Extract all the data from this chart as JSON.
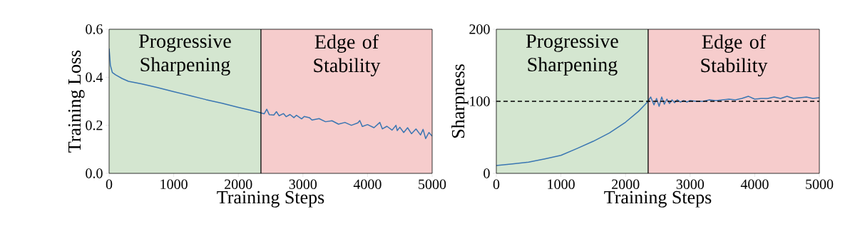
{
  "chart_data": [
    {
      "type": "line",
      "xlabel": "Training Steps",
      "ylabel": "Training Loss",
      "xlim": [
        0,
        5000
      ],
      "ylim": [
        0,
        0.6
      ],
      "xticks": [
        0,
        1000,
        2000,
        3000,
        4000,
        5000
      ],
      "yticks": [
        {
          "value": 0,
          "label": "0.0"
        },
        0.2,
        0.4,
        0.6
      ],
      "series": [
        {
          "color": "#3a76b2",
          "x": [
            0,
            20,
            50,
            100,
            200,
            300,
            500,
            750,
            1000,
            1250,
            1500,
            1750,
            2000,
            2200,
            2350,
            2400,
            2440,
            2480,
            2550,
            2590,
            2630,
            2700,
            2740,
            2800,
            2860,
            2900,
            2980,
            3020,
            3100,
            3140,
            3250,
            3350,
            3450,
            3550,
            3650,
            3750,
            3850,
            3880,
            3920,
            4000,
            4100,
            4190,
            4230,
            4300,
            4380,
            4440,
            4460,
            4500,
            4560,
            4620,
            4680,
            4750,
            4820,
            4860,
            4900,
            4950,
            5000
          ],
          "values": [
            0.52,
            0.45,
            0.42,
            0.41,
            0.395,
            0.383,
            0.373,
            0.357,
            0.34,
            0.324,
            0.307,
            0.292,
            0.275,
            0.262,
            0.252,
            0.248,
            0.267,
            0.244,
            0.243,
            0.257,
            0.24,
            0.249,
            0.236,
            0.245,
            0.232,
            0.242,
            0.227,
            0.237,
            0.232,
            0.222,
            0.228,
            0.215,
            0.219,
            0.205,
            0.212,
            0.2,
            0.21,
            0.22,
            0.195,
            0.203,
            0.19,
            0.212,
            0.185,
            0.196,
            0.18,
            0.2,
            0.178,
            0.192,
            0.17,
            0.19,
            0.165,
            0.185,
            0.16,
            0.183,
            0.145,
            0.17,
            0.155
          ]
        }
      ],
      "ref_lines": [
        {
          "axis": "x",
          "value": 2350,
          "color": "#000000",
          "line_style": "solid"
        }
      ],
      "bands": [
        {
          "axis": "x",
          "from": 0,
          "to": 2350,
          "label": "Progressive Sharpening",
          "color": "#d4e6d0"
        },
        {
          "axis": "x",
          "from": 2350,
          "to": 5000,
          "label": "Edge of Stability",
          "color": "#f6cccc"
        }
      ]
    },
    {
      "type": "line",
      "xlabel": "Training Steps",
      "ylabel": "Sharpness",
      "xlim": [
        0,
        5000
      ],
      "ylim": [
        0,
        200
      ],
      "xticks": [
        0,
        1000,
        2000,
        3000,
        4000,
        5000
      ],
      "yticks": [
        0,
        100,
        200
      ],
      "series": [
        {
          "color": "#3a76b2",
          "x": [
            0,
            250,
            500,
            750,
            1000,
            1250,
            1500,
            1750,
            2000,
            2200,
            2350,
            2390,
            2440,
            2480,
            2520,
            2560,
            2600,
            2640,
            2680,
            2720,
            2760,
            2800,
            2850,
            2900,
            2950,
            3000,
            3100,
            3200,
            3300,
            3400,
            3500,
            3600,
            3700,
            3800,
            3900,
            4000,
            4100,
            4200,
            4300,
            4400,
            4500,
            4600,
            4700,
            4800,
            4900,
            5000
          ],
          "values": [
            11,
            13,
            15.5,
            20,
            25,
            34.5,
            44.5,
            56,
            71,
            86,
            100,
            106,
            95,
            104,
            93,
            106,
            96,
            103,
            97,
            102,
            98,
            102,
            99,
            101,
            99,
            101,
            100,
            100,
            102,
            101,
            102,
            103,
            102,
            104,
            107,
            103,
            104,
            104,
            106,
            104,
            107,
            104,
            105,
            106,
            104,
            105
          ]
        }
      ],
      "ref_lines": [
        {
          "axis": "x",
          "value": 2350,
          "color": "#000000",
          "line_style": "solid"
        },
        {
          "axis": "y",
          "value": 100,
          "color": "#000000",
          "line_style": "dashed"
        }
      ],
      "bands": [
        {
          "axis": "x",
          "from": 0,
          "to": 2350,
          "label": "Progressive Sharpening",
          "color": "#d4e6d0"
        },
        {
          "axis": "x",
          "from": 2350,
          "to": 5000,
          "label": "Edge of Stability",
          "color": "#f6cccc"
        }
      ]
    }
  ]
}
